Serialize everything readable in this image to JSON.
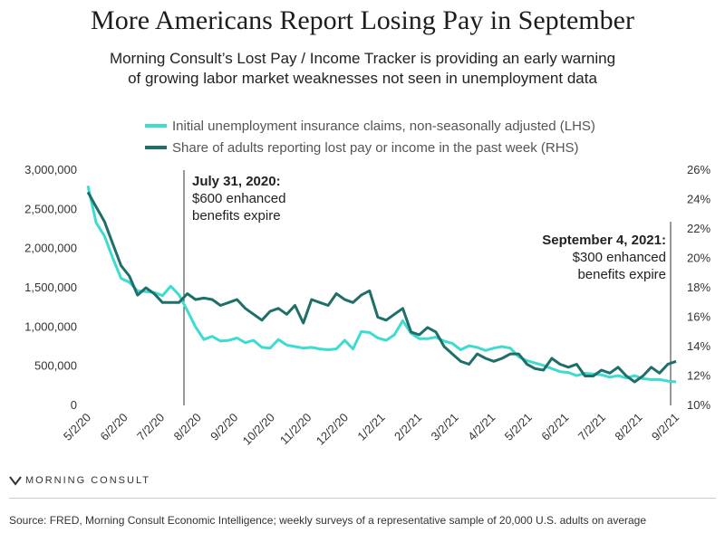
{
  "title": "More Americans Report Losing Pay in September",
  "subtitle_line1": "Morning Consult’s Lost Pay / Income Tracker is providing an early warning",
  "subtitle_line2": "of growing labor market weaknesses not seen in unemployment data",
  "brand": "MORNING CONSULT",
  "source": "Source: FRED, Morning Consult Economic Intelligence; weekly surveys of a representative sample of 20,000 U.S. adults on average",
  "colors": {
    "claims": "#3ddbd0",
    "lostpay": "#1f6f69",
    "vline": "#333333"
  },
  "chart_data": {
    "type": "line",
    "legend": [
      "Initial unemployment insurance claims, non-seasonally adjusted (LHS)",
      "Share of adults reporting lost pay or income in the past week (RHS)"
    ],
    "x_tick_labels": [
      "5/2/20",
      "6/2/20",
      "7/2/20",
      "8/2/20",
      "9/2/20",
      "10/2/20",
      "11/2/20",
      "12/2/20",
      "1/2/21",
      "2/2/21",
      "3/2/21",
      "4/2/21",
      "5/2/21",
      "6/2/21",
      "7/2/21",
      "8/2/21",
      "9/2/21"
    ],
    "y_left_ticks": [
      "3,000,000",
      "2,500,000",
      "2,000,000",
      "1,500,000",
      "1,000,000",
      "500,000",
      "0"
    ],
    "y_right_ticks": [
      "26%",
      "24%",
      "22%",
      "20%",
      "18%",
      "16%",
      "14%",
      "12%",
      "10%"
    ],
    "ylim_left": [
      0,
      3000000
    ],
    "ylim_right": [
      10,
      26
    ],
    "series": [
      {
        "name": "Initial unemployment insurance claims, non-seasonally adjusted (LHS)",
        "axis": "left",
        "values": [
          2800000,
          2330000,
          2160000,
          1880000,
          1620000,
          1570000,
          1460000,
          1450000,
          1440000,
          1400000,
          1520000,
          1410000,
          1210000,
          1000000,
          840000,
          880000,
          820000,
          830000,
          860000,
          800000,
          830000,
          740000,
          730000,
          840000,
          770000,
          750000,
          730000,
          740000,
          720000,
          710000,
          720000,
          830000,
          720000,
          940000,
          930000,
          860000,
          830000,
          900000,
          1080000,
          920000,
          850000,
          850000,
          870000,
          820000,
          790000,
          710000,
          760000,
          740000,
          700000,
          730000,
          750000,
          730000,
          620000,
          570000,
          540000,
          510000,
          470000,
          430000,
          420000,
          380000,
          410000,
          400000,
          390000,
          360000,
          380000,
          350000,
          380000,
          340000,
          330000,
          330000,
          310000,
          300000
        ]
      },
      {
        "name": "Share of adults reporting lost pay or income in the past week (RHS)",
        "axis": "right",
        "values": [
          24.5,
          23.5,
          22.5,
          21.0,
          19.5,
          18.8,
          17.5,
          18.0,
          17.6,
          17.0,
          17.0,
          17.0,
          17.6,
          17.2,
          17.3,
          17.2,
          16.8,
          17.0,
          17.2,
          16.6,
          16.2,
          15.8,
          16.4,
          16.6,
          16.2,
          16.8,
          15.6,
          17.2,
          17.0,
          16.8,
          17.6,
          17.2,
          17.0,
          17.5,
          17.8,
          16.0,
          15.8,
          16.2,
          16.6,
          15.0,
          14.8,
          15.3,
          15.0,
          14.0,
          13.5,
          13.0,
          12.8,
          13.5,
          13.2,
          13.0,
          13.2,
          13.5,
          13.5,
          12.8,
          12.5,
          12.4,
          13.2,
          12.8,
          12.6,
          12.8,
          12.0,
          12.0,
          12.4,
          12.2,
          12.6,
          12.0,
          11.6,
          12.0,
          12.6,
          12.2,
          12.8,
          13.0
        ]
      }
    ],
    "annotations": [
      {
        "date": "7/31/20",
        "lines": [
          "July 31, 2020:",
          "$600 enhanced",
          "benefits expire"
        ]
      },
      {
        "date": "9/4/21",
        "lines": [
          "September 4, 2021:",
          "$300 enhanced",
          "benefits expire"
        ]
      }
    ]
  }
}
